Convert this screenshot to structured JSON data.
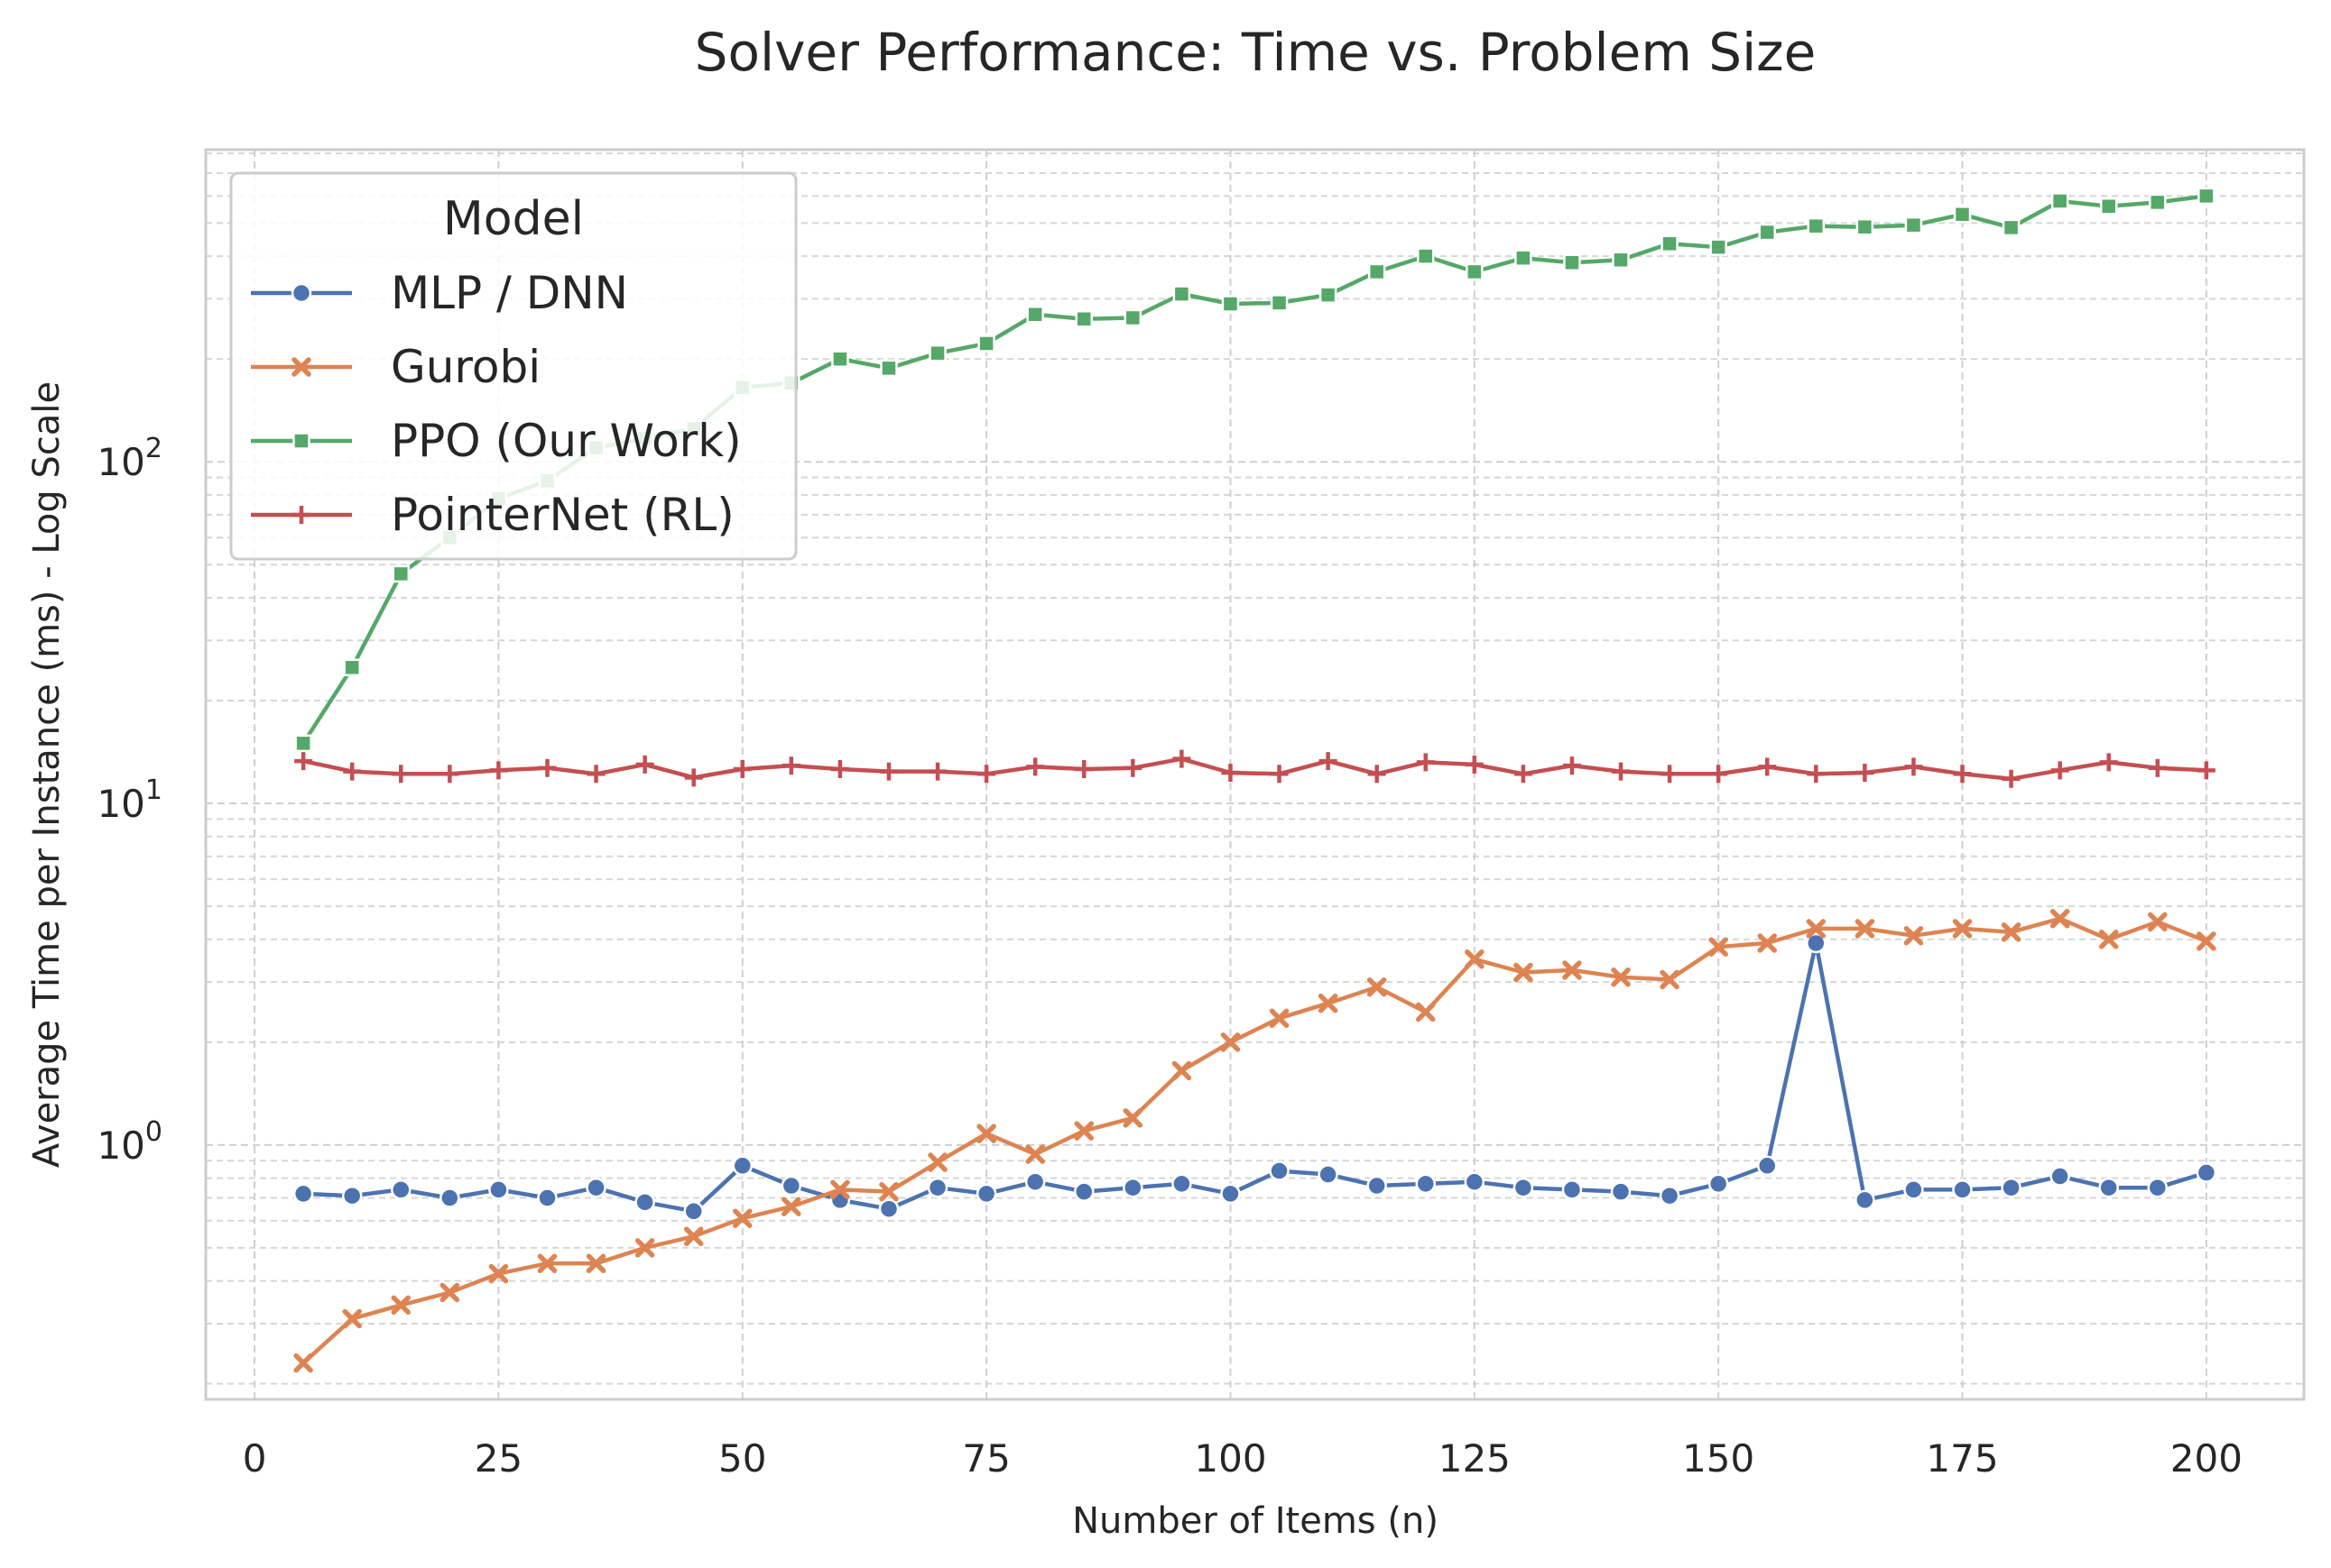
{
  "chart_data": {
    "type": "line",
    "title": "Solver Performance: Time vs. Problem Size",
    "xlabel": "Number of Items (n)",
    "ylabel": "Average Time per Instance (ms) - Log Scale",
    "xlim": [
      -5,
      210
    ],
    "ylim": [
      0.18,
      820
    ],
    "yscale": "log",
    "grid": true,
    "x_ticks": [
      0,
      25,
      50,
      75,
      100,
      125,
      150,
      175,
      200
    ],
    "y_ticks": [
      {
        "value": 1,
        "base": "10",
        "exp": "0"
      },
      {
        "value": 10,
        "base": "10",
        "exp": "1"
      },
      {
        "value": 100,
        "base": "10",
        "exp": "2"
      }
    ],
    "legend": {
      "title": "Model",
      "position": "top-left"
    },
    "x": [
      5,
      10,
      15,
      20,
      25,
      30,
      35,
      40,
      45,
      50,
      55,
      60,
      65,
      70,
      75,
      80,
      85,
      90,
      95,
      100,
      105,
      110,
      115,
      120,
      125,
      130,
      135,
      140,
      145,
      150,
      155,
      160,
      165,
      170,
      175,
      180,
      185,
      190,
      195,
      200
    ],
    "series": [
      {
        "name": "MLP / DNN",
        "color": "#4c72b0",
        "marker": "circle",
        "values": [
          0.72,
          0.71,
          0.74,
          0.7,
          0.74,
          0.7,
          0.75,
          0.68,
          0.64,
          0.87,
          0.76,
          0.69,
          0.65,
          0.75,
          0.72,
          0.78,
          0.73,
          0.75,
          0.77,
          0.72,
          0.84,
          0.82,
          0.76,
          0.77,
          0.78,
          0.75,
          0.74,
          0.73,
          0.71,
          0.77,
          0.87,
          3.9,
          0.69,
          0.74,
          0.74,
          0.75,
          0.81,
          0.75,
          0.75,
          0.83
        ]
      },
      {
        "name": "Gurobi",
        "color": "#dd8452",
        "marker": "x",
        "values": [
          0.23,
          0.31,
          0.34,
          0.37,
          0.42,
          0.45,
          0.45,
          0.5,
          0.54,
          0.61,
          0.66,
          0.74,
          0.73,
          0.89,
          1.08,
          0.94,
          1.1,
          1.2,
          1.65,
          2.0,
          2.35,
          2.6,
          2.9,
          2.45,
          3.5,
          3.2,
          3.25,
          3.1,
          3.05,
          3.8,
          3.9,
          4.3,
          4.3,
          4.1,
          4.3,
          4.2,
          4.6,
          4.0,
          4.5,
          3.95
        ]
      },
      {
        "name": "PPO (Our Work)",
        "color": "#55a868",
        "marker": "square",
        "values": [
          15,
          25,
          47,
          60,
          78,
          88,
          110,
          117,
          125,
          165,
          170,
          200,
          188,
          208,
          222,
          270,
          262,
          264,
          310,
          290,
          292,
          308,
          360,
          400,
          360,
          395,
          383,
          390,
          435,
          425,
          470,
          490,
          487,
          493,
          530,
          485,
          580,
          560,
          575,
          600
        ]
      },
      {
        "name": "PointerNet (RL)",
        "color": "#c44e52",
        "marker": "plus",
        "values": [
          13.3,
          12.4,
          12.2,
          12.2,
          12.5,
          12.7,
          12.2,
          13.0,
          11.9,
          12.6,
          12.9,
          12.6,
          12.4,
          12.4,
          12.2,
          12.8,
          12.6,
          12.7,
          13.5,
          12.3,
          12.2,
          13.3,
          12.2,
          13.2,
          13.0,
          12.2,
          12.9,
          12.4,
          12.2,
          12.2,
          12.8,
          12.2,
          12.3,
          12.8,
          12.2,
          11.8,
          12.5,
          13.2,
          12.7,
          12.5
        ]
      }
    ]
  }
}
